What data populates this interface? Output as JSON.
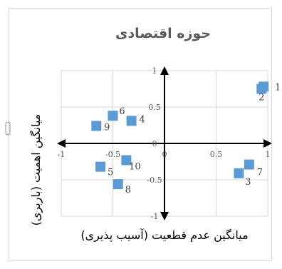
{
  "chart_data": {
    "type": "scatter",
    "title": "حوزه اقتصادی",
    "xlabel": "میانگین عدم قطعیت (آسیب پذیری)",
    "ylabel": "میانگین اهمیت (باربری)",
    "xlim": [
      -1,
      1
    ],
    "ylim": [
      -1,
      1
    ],
    "x_ticks": [
      "-1",
      "-0.5",
      "0",
      "0.5",
      "1"
    ],
    "y_ticks": [
      "1",
      "0.5",
      "0",
      "-0.5",
      "-1"
    ],
    "grid": true,
    "marker": "square",
    "marker_color": "#5b9bd5",
    "points": [
      {
        "label": "1",
        "x": 0.96,
        "y": 0.78
      },
      {
        "label": "2",
        "x": 0.94,
        "y": 0.75
      },
      {
        "label": "3",
        "x": 0.72,
        "y": -0.41
      },
      {
        "label": "4",
        "x": -0.32,
        "y": 0.31
      },
      {
        "label": "5",
        "x": -0.62,
        "y": -0.32
      },
      {
        "label": "6",
        "x": -0.5,
        "y": 0.38
      },
      {
        "label": "7",
        "x": 0.82,
        "y": -0.29
      },
      {
        "label": "8",
        "x": -0.45,
        "y": -0.56
      },
      {
        "label": "9",
        "x": -0.66,
        "y": 0.24
      },
      {
        "label": "10",
        "x": -0.37,
        "y": -0.23
      }
    ]
  }
}
